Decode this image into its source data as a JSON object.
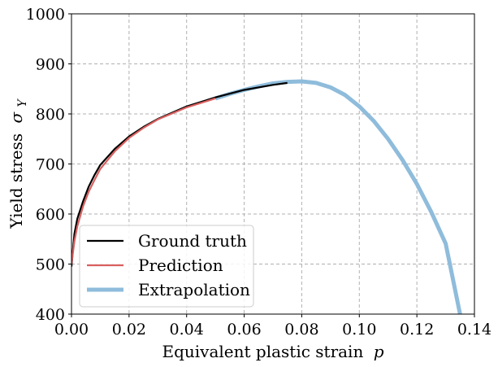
{
  "chart_data": {
    "type": "line",
    "title": "",
    "xlabel": "Equivalent plastic strain",
    "xlabel_symbol": "p",
    "ylabel": "Yield stress",
    "ylabel_symbol": "σ",
    "ylabel_subscript": "Y",
    "xlim": [
      0.0,
      0.14
    ],
    "ylim": [
      400,
      1000
    ],
    "x_ticks": [
      0.0,
      0.02,
      0.04,
      0.06,
      0.08,
      0.1,
      0.12,
      0.14
    ],
    "x_tick_labels": [
      "0.00",
      "0.02",
      "0.04",
      "0.06",
      "0.08",
      "0.10",
      "0.12",
      "0.14"
    ],
    "y_ticks": [
      400,
      500,
      600,
      700,
      800,
      900,
      1000
    ],
    "y_tick_labels": [
      "400",
      "500",
      "600",
      "700",
      "800",
      "900",
      "1000"
    ],
    "grid": true,
    "legend_position": "lower-left",
    "series": [
      {
        "name": "Ground truth",
        "color": "#000000",
        "style": "solid",
        "x": [
          0.0,
          0.001,
          0.002,
          0.004,
          0.006,
          0.008,
          0.01,
          0.015,
          0.02,
          0.025,
          0.03,
          0.04,
          0.05,
          0.06,
          0.07,
          0.075
        ],
        "y": [
          495,
          560,
          590,
          625,
          655,
          678,
          698,
          730,
          755,
          774,
          790,
          815,
          833,
          848,
          858,
          862
        ]
      },
      {
        "name": "Prediction",
        "color": "#d95f5f",
        "style": "solid",
        "x": [
          0.0,
          0.001,
          0.002,
          0.004,
          0.006,
          0.008,
          0.01,
          0.015,
          0.02,
          0.025,
          0.03,
          0.04,
          0.05
        ],
        "y": [
          500,
          545,
          575,
          615,
          645,
          668,
          690,
          725,
          752,
          772,
          789,
          813,
          831
        ]
      },
      {
        "name": "Extrapolation",
        "color": "#8fbcdb",
        "style": "solid",
        "x": [
          0.05,
          0.055,
          0.06,
          0.065,
          0.07,
          0.075,
          0.08,
          0.085,
          0.09,
          0.095,
          0.1,
          0.105,
          0.11,
          0.115,
          0.12,
          0.125,
          0.13,
          0.135
        ],
        "y": [
          831,
          840,
          848,
          855,
          861,
          864,
          865,
          862,
          853,
          838,
          815,
          786,
          750,
          708,
          660,
          604,
          541,
          400
        ]
      }
    ]
  }
}
